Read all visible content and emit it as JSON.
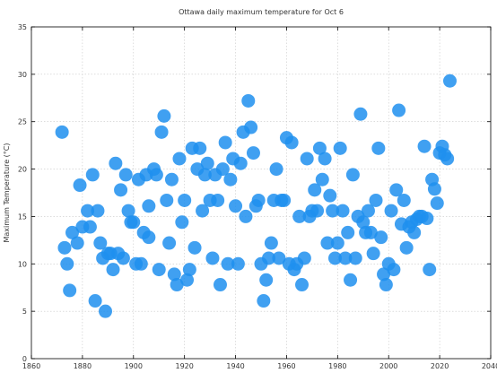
{
  "chart_data": {
    "type": "scatter",
    "title": "Ottawa daily maximum temperature for Oct 6",
    "xlabel": "",
    "ylabel": "Maximum Temperature (°C)",
    "xlim": [
      1860,
      2040
    ],
    "ylim": [
      0,
      35
    ],
    "xticks": [
      1860,
      1880,
      1900,
      1920,
      1940,
      1960,
      1980,
      2000,
      2020,
      2040
    ],
    "yticks": [
      0,
      5,
      10,
      15,
      20,
      25,
      30,
      35
    ],
    "grid": true,
    "marker_color": "#1e8fef",
    "marker_opacity": 0.85,
    "points": [
      [
        1872,
        23.9
      ],
      [
        1873,
        11.7
      ],
      [
        1874,
        10.0
      ],
      [
        1875,
        7.2
      ],
      [
        1876,
        13.3
      ],
      [
        1878,
        12.2
      ],
      [
        1879,
        18.3
      ],
      [
        1880,
        13.9
      ],
      [
        1882,
        15.6
      ],
      [
        1883,
        13.9
      ],
      [
        1884,
        19.4
      ],
      [
        1885,
        6.1
      ],
      [
        1886,
        15.6
      ],
      [
        1887,
        12.2
      ],
      [
        1888,
        10.6
      ],
      [
        1889,
        5.0
      ],
      [
        1890,
        11.1
      ],
      [
        1891,
        11.1
      ],
      [
        1892,
        9.4
      ],
      [
        1893,
        20.6
      ],
      [
        1894,
        11.1
      ],
      [
        1895,
        17.8
      ],
      [
        1896,
        10.6
      ],
      [
        1897,
        19.4
      ],
      [
        1898,
        15.6
      ],
      [
        1899,
        14.4
      ],
      [
        1900,
        14.4
      ],
      [
        1901,
        10.0
      ],
      [
        1902,
        18.9
      ],
      [
        1903,
        10.0
      ],
      [
        1904,
        13.3
      ],
      [
        1905,
        19.4
      ],
      [
        1906,
        12.8
      ],
      [
        1906,
        16.1
      ],
      [
        1908,
        20.0
      ],
      [
        1909,
        19.4
      ],
      [
        1910,
        9.4
      ],
      [
        1911,
        23.9
      ],
      [
        1912,
        25.6
      ],
      [
        1913,
        16.7
      ],
      [
        1914,
        12.2
      ],
      [
        1915,
        18.9
      ],
      [
        1916,
        8.9
      ],
      [
        1917,
        7.8
      ],
      [
        1918,
        21.1
      ],
      [
        1919,
        14.4
      ],
      [
        1920,
        16.7
      ],
      [
        1921,
        8.3
      ],
      [
        1922,
        9.4
      ],
      [
        1923,
        22.2
      ],
      [
        1924,
        11.7
      ],
      [
        1925,
        20.0
      ],
      [
        1926,
        22.2
      ],
      [
        1927,
        15.6
      ],
      [
        1928,
        19.4
      ],
      [
        1929,
        20.6
      ],
      [
        1930,
        16.7
      ],
      [
        1931,
        10.6
      ],
      [
        1932,
        19.4
      ],
      [
        1933,
        16.7
      ],
      [
        1934,
        7.8
      ],
      [
        1935,
        20.0
      ],
      [
        1936,
        22.8
      ],
      [
        1937,
        10.0
      ],
      [
        1938,
        18.9
      ],
      [
        1939,
        21.1
      ],
      [
        1940,
        16.1
      ],
      [
        1941,
        10.0
      ],
      [
        1942,
        20.6
      ],
      [
        1943,
        23.9
      ],
      [
        1944,
        15.0
      ],
      [
        1945,
        27.2
      ],
      [
        1946,
        24.4
      ],
      [
        1947,
        21.7
      ],
      [
        1948,
        16.1
      ],
      [
        1949,
        16.7
      ],
      [
        1950,
        10.0
      ],
      [
        1951,
        6.1
      ],
      [
        1952,
        8.3
      ],
      [
        1953,
        10.6
      ],
      [
        1954,
        12.2
      ],
      [
        1955,
        16.7
      ],
      [
        1956,
        20.0
      ],
      [
        1957,
        10.6
      ],
      [
        1958,
        16.7
      ],
      [
        1959,
        16.7
      ],
      [
        1960,
        23.3
      ],
      [
        1961,
        10.0
      ],
      [
        1962,
        22.8
      ],
      [
        1963,
        9.4
      ],
      [
        1964,
        10.0
      ],
      [
        1965,
        15.0
      ],
      [
        1966,
        7.8
      ],
      [
        1967,
        10.6
      ],
      [
        1968,
        21.1
      ],
      [
        1969,
        15.0
      ],
      [
        1970,
        15.6
      ],
      [
        1971,
        17.8
      ],
      [
        1972,
        15.6
      ],
      [
        1973,
        22.2
      ],
      [
        1974,
        18.9
      ],
      [
        1975,
        21.1
      ],
      [
        1976,
        12.2
      ],
      [
        1977,
        17.2
      ],
      [
        1978,
        15.6
      ],
      [
        1979,
        10.6
      ],
      [
        1980,
        12.2
      ],
      [
        1981,
        22.2
      ],
      [
        1982,
        15.6
      ],
      [
        1983,
        10.6
      ],
      [
        1984,
        13.3
      ],
      [
        1985,
        8.3
      ],
      [
        1986,
        19.4
      ],
      [
        1987,
        10.6
      ],
      [
        1988,
        15.0
      ],
      [
        1989,
        25.8
      ],
      [
        1990,
        14.4
      ],
      [
        1991,
        13.3
      ],
      [
        1992,
        15.6
      ],
      [
        1993,
        13.3
      ],
      [
        1994,
        11.1
      ],
      [
        1995,
        16.7
      ],
      [
        1996,
        22.2
      ],
      [
        1997,
        12.8
      ],
      [
        1998,
        8.9
      ],
      [
        1999,
        7.8
      ],
      [
        2000,
        10.0
      ],
      [
        2001,
        15.6
      ],
      [
        2002,
        9.4
      ],
      [
        2003,
        17.8
      ],
      [
        2004,
        26.2
      ],
      [
        2005,
        14.2
      ],
      [
        2006,
        16.7
      ],
      [
        2007,
        11.7
      ],
      [
        2008,
        13.9
      ],
      [
        2009,
        14.4
      ],
      [
        2010,
        13.3
      ],
      [
        2011,
        14.7
      ],
      [
        2012,
        15.0
      ],
      [
        2013,
        15.0
      ],
      [
        2014,
        22.4
      ],
      [
        2015,
        14.8
      ],
      [
        2016,
        9.4
      ],
      [
        2017,
        18.9
      ],
      [
        2018,
        17.9
      ],
      [
        2019,
        16.4
      ],
      [
        2020,
        21.7
      ],
      [
        2021,
        22.4
      ],
      [
        2022,
        21.5
      ],
      [
        2023,
        21.1
      ],
      [
        2024,
        29.3
      ]
    ]
  }
}
